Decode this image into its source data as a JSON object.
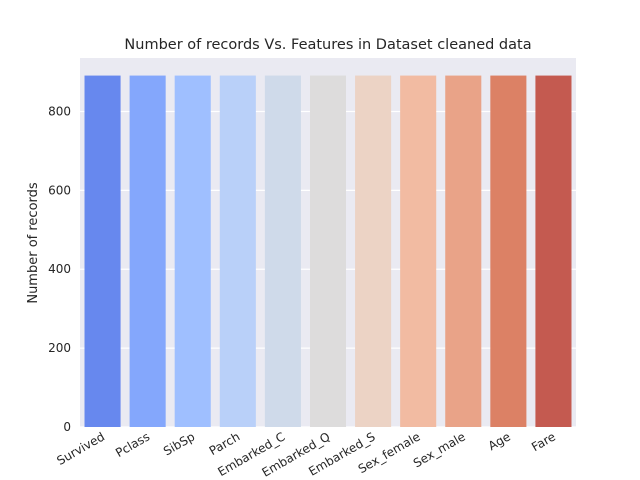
{
  "chart_data": {
    "type": "bar",
    "title": "Number of records Vs. Features in Dataset cleaned data",
    "xlabel": "",
    "ylabel": "Number of records",
    "categories": [
      "Survived",
      "Pclass",
      "SibSp",
      "Parch",
      "Embarked_C",
      "Embarked_Q",
      "Embarked_S",
      "Sex_female",
      "Sex_male",
      "Age",
      "Fare"
    ],
    "values": [
      891,
      891,
      891,
      891,
      891,
      891,
      891,
      891,
      891,
      891,
      891
    ],
    "ylim": [
      0,
      935.55
    ],
    "yticks": [
      0,
      200,
      400,
      600,
      800
    ],
    "grid": true,
    "colors": [
      "#6788ee",
      "#84a7fc",
      "#9fbfff",
      "#b9d0f9",
      "#cfdaea",
      "#dddcdc",
      "#ecd3c5",
      "#f2bba2",
      "#e9a388",
      "#dc8165",
      "#c45a50"
    ],
    "background": "#eaeaf2"
  }
}
